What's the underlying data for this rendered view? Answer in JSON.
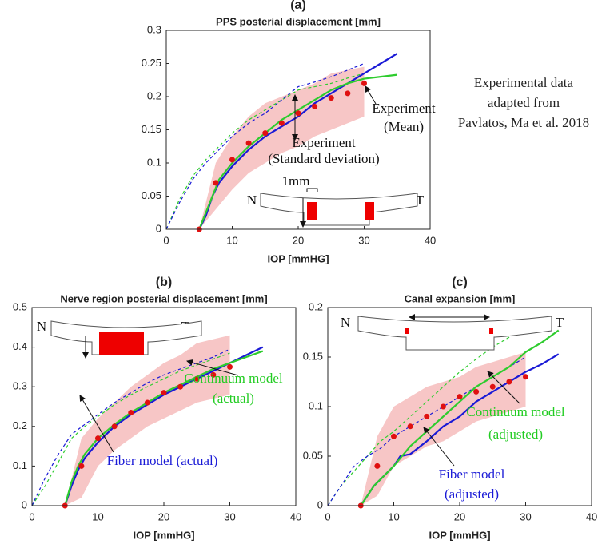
{
  "note": [
    "Experimental data",
    "adapted from",
    "Pavlatos, Ma et al. 2018"
  ],
  "chart_data": [
    {
      "type": "line",
      "panel_label": "(a)",
      "title": "PPS posterial displacement [mm]",
      "xlabel": "IOP [mmHG]",
      "xlim": [
        0,
        40
      ],
      "ylim": [
        0,
        0.3
      ],
      "xticks": [
        0,
        10,
        20,
        30,
        40
      ],
      "yticks": [
        0,
        0.05,
        0.1,
        0.15,
        0.2,
        0.25,
        0.3
      ],
      "band": {
        "color": "#f7c6c6",
        "x": [
          5,
          7.5,
          10,
          12.5,
          15,
          17.5,
          20,
          22.5,
          25,
          27.5,
          30
        ],
        "lower": [
          0,
          0.03,
          0.06,
          0.085,
          0.1,
          0.115,
          0.125,
          0.14,
          0.15,
          0.16,
          0.17
        ],
        "upper": [
          0,
          0.1,
          0.14,
          0.17,
          0.19,
          0.2,
          0.21,
          0.22,
          0.235,
          0.24,
          0.245
        ]
      },
      "series": [
        {
          "style": "dashed",
          "color": "#2ecc2e",
          "x": [
            0,
            2,
            4,
            6,
            8,
            10,
            12.5,
            15,
            17.5,
            20,
            22.5,
            25,
            27.5,
            30
          ],
          "values": [
            0,
            0.045,
            0.08,
            0.105,
            0.125,
            0.145,
            0.165,
            0.18,
            0.195,
            0.21,
            0.215,
            0.22,
            0.228,
            0.235
          ]
        },
        {
          "style": "dashed",
          "color": "#1a1ad6",
          "x": [
            0,
            2,
            4,
            6,
            8,
            10,
            12.5,
            15,
            17.5,
            20,
            22.5,
            25,
            27.5,
            30
          ],
          "values": [
            0,
            0.04,
            0.075,
            0.1,
            0.12,
            0.14,
            0.16,
            0.175,
            0.195,
            0.215,
            0.222,
            0.23,
            0.24,
            0.25
          ]
        },
        {
          "style": "solid",
          "color": "#1a1ad6",
          "x": [
            5,
            6,
            7,
            8,
            10,
            12.5,
            15,
            17.5,
            20,
            22.5,
            25,
            27.5,
            30,
            32.5,
            35
          ],
          "values": [
            0,
            0.02,
            0.05,
            0.07,
            0.095,
            0.12,
            0.14,
            0.155,
            0.17,
            0.19,
            0.205,
            0.22,
            0.235,
            0.25,
            0.265
          ]
        },
        {
          "style": "solid",
          "color": "#2ecc2e",
          "x": [
            5,
            6,
            7,
            8,
            10,
            12.5,
            15,
            17.5,
            20,
            22.5,
            25,
            27.5,
            30,
            32.5,
            35
          ],
          "values": [
            0,
            0.025,
            0.05,
            0.075,
            0.1,
            0.125,
            0.145,
            0.165,
            0.18,
            0.195,
            0.21,
            0.22,
            0.227,
            0.23,
            0.233
          ]
        },
        {
          "style": "dots",
          "color": "#e01010",
          "x": [
            5,
            7.5,
            10,
            12.5,
            15,
            17.5,
            20,
            22.5,
            25,
            27.5,
            30
          ],
          "values": [
            0,
            0.07,
            0.105,
            0.13,
            0.145,
            0.16,
            0.175,
            0.185,
            0.198,
            0.205,
            0.22
          ]
        }
      ],
      "annotations": [
        {
          "text": "Experiment",
          "color": "#111"
        },
        {
          "text": "(Mean)",
          "color": "#111"
        },
        {
          "text": "Experiment",
          "color": "#111"
        },
        {
          "text": "(Standard deviation)",
          "color": "#111"
        },
        {
          "text": "1mm",
          "color": "#111"
        },
        {
          "text": "N",
          "color": "#111"
        },
        {
          "text": "T",
          "color": "#111"
        }
      ]
    },
    {
      "type": "line",
      "panel_label": "(b)",
      "title": "Nerve region posterial displacement [mm]",
      "xlabel": "IOP [mmHG]",
      "xlim": [
        0,
        40
      ],
      "ylim": [
        0,
        0.5
      ],
      "xticks": [
        0,
        10,
        20,
        30,
        40
      ],
      "yticks": [
        0,
        0.1,
        0.2,
        0.3,
        0.4,
        0.5
      ],
      "band": {
        "color": "#f7c6c6",
        "x": [
          5,
          7.5,
          10,
          12.5,
          15,
          17.5,
          20,
          22.5,
          25,
          27.5,
          30
        ],
        "lower": [
          0,
          0.02,
          0.1,
          0.14,
          0.17,
          0.2,
          0.22,
          0.24,
          0.26,
          0.27,
          0.28
        ],
        "upper": [
          0,
          0.17,
          0.22,
          0.26,
          0.3,
          0.33,
          0.36,
          0.38,
          0.41,
          0.42,
          0.43
        ]
      },
      "series": [
        {
          "style": "dashed",
          "color": "#2ecc2e",
          "x": [
            0,
            2,
            4,
            6,
            8,
            10,
            12.5,
            15,
            17.5,
            20,
            22.5,
            25,
            27.5,
            30
          ],
          "values": [
            0,
            0.05,
            0.11,
            0.17,
            0.2,
            0.225,
            0.255,
            0.28,
            0.3,
            0.32,
            0.34,
            0.355,
            0.37,
            0.385
          ]
        },
        {
          "style": "dashed",
          "color": "#1a1ad6",
          "x": [
            0,
            2,
            4,
            6,
            8,
            10,
            12.5,
            15,
            17.5,
            20,
            22.5,
            25,
            27.5,
            30
          ],
          "values": [
            0,
            0.07,
            0.13,
            0.18,
            0.205,
            0.23,
            0.26,
            0.285,
            0.31,
            0.33,
            0.345,
            0.36,
            0.375,
            0.395
          ]
        },
        {
          "style": "solid",
          "color": "#1a1ad6",
          "x": [
            5,
            6,
            7,
            8,
            10,
            12.5,
            15,
            17.5,
            20,
            22.5,
            25,
            27.5,
            30,
            32.5,
            35
          ],
          "values": [
            0,
            0.05,
            0.09,
            0.12,
            0.16,
            0.2,
            0.23,
            0.255,
            0.28,
            0.3,
            0.32,
            0.34,
            0.36,
            0.38,
            0.4
          ]
        },
        {
          "style": "solid",
          "color": "#2ecc2e",
          "x": [
            5,
            6,
            7,
            8,
            10,
            12.5,
            15,
            17.5,
            20,
            22.5,
            25,
            27.5,
            30,
            32.5,
            35
          ],
          "values": [
            0,
            0.06,
            0.1,
            0.13,
            0.17,
            0.205,
            0.235,
            0.26,
            0.285,
            0.305,
            0.325,
            0.345,
            0.36,
            0.375,
            0.39
          ]
        },
        {
          "style": "dots",
          "color": "#e01010",
          "x": [
            5,
            7.5,
            10,
            12.5,
            15,
            17.5,
            20,
            22.5,
            25,
            27.5,
            30
          ],
          "values": [
            0,
            0.1,
            0.17,
            0.2,
            0.235,
            0.26,
            0.285,
            0.3,
            0.32,
            0.33,
            0.35
          ]
        }
      ],
      "annotations": [
        {
          "text": "Continuum model",
          "color": "#22cc22"
        },
        {
          "text": "(actual)",
          "color": "#22cc22"
        },
        {
          "text": "Fiber model (actual)",
          "color": "#1a1ad6"
        },
        {
          "text": "N",
          "color": "#111"
        },
        {
          "text": "T",
          "color": "#111"
        }
      ]
    },
    {
      "type": "line",
      "panel_label": "(c)",
      "title": "Canal expansion [mm]",
      "xlabel": "IOP [mmHG]",
      "xlim": [
        0,
        40
      ],
      "ylim": [
        0,
        0.2
      ],
      "xticks": [
        0,
        10,
        20,
        30,
        40
      ],
      "yticks": [
        0,
        0.05,
        0.1,
        0.15,
        0.2
      ],
      "band": {
        "color": "#f7c6c6",
        "x": [
          5,
          7.5,
          10,
          12.5,
          15,
          17.5,
          20,
          22.5,
          25,
          27.5,
          30
        ],
        "lower": [
          0,
          0.01,
          0.04,
          0.05,
          0.06,
          0.065,
          0.075,
          0.085,
          0.09,
          0.095,
          0.1
        ],
        "upper": [
          0,
          0.07,
          0.1,
          0.11,
          0.12,
          0.125,
          0.13,
          0.14,
          0.145,
          0.15,
          0.155
        ]
      },
      "series": [
        {
          "style": "dashed",
          "color": "#2ecc2e",
          "x": [
            0,
            2,
            4,
            6,
            8,
            10,
            12.5,
            15,
            17.5,
            20,
            22.5,
            25,
            27.5,
            30
          ],
          "values": [
            0,
            0.02,
            0.035,
            0.05,
            0.065,
            0.075,
            0.09,
            0.105,
            0.12,
            0.135,
            0.148,
            0.16,
            0.17,
            0.178
          ]
        },
        {
          "style": "dashed",
          "color": "#1a1ad6",
          "x": [
            0,
            2,
            4,
            6,
            8,
            10,
            12.5,
            15,
            17.5,
            20,
            22.5,
            25,
            27.5,
            30
          ],
          "values": [
            0,
            0.02,
            0.04,
            0.05,
            0.058,
            0.07,
            0.08,
            0.09,
            0.1,
            0.11,
            0.12,
            0.13,
            0.14,
            0.15
          ]
        },
        {
          "style": "solid",
          "color": "#1a1ad6",
          "x": [
            5,
            7,
            10,
            11,
            12.5,
            15,
            17.5,
            20,
            22.5,
            25,
            27.5,
            30,
            32.5,
            35
          ],
          "values": [
            0,
            0.02,
            0.04,
            0.05,
            0.052,
            0.065,
            0.08,
            0.09,
            0.105,
            0.115,
            0.125,
            0.135,
            0.143,
            0.153
          ]
        },
        {
          "style": "solid",
          "color": "#2ecc2e",
          "x": [
            5,
            7,
            10,
            12.5,
            15,
            17.5,
            20,
            22.5,
            25,
            27.5,
            30,
            32.5,
            35
          ],
          "values": [
            0,
            0.02,
            0.04,
            0.06,
            0.075,
            0.09,
            0.105,
            0.12,
            0.13,
            0.14,
            0.155,
            0.165,
            0.177
          ]
        },
        {
          "style": "dots",
          "color": "#e01010",
          "x": [
            5,
            7.5,
            10,
            12.5,
            15,
            17.5,
            20,
            22.5,
            25,
            27.5,
            30
          ],
          "values": [
            0,
            0.04,
            0.07,
            0.08,
            0.09,
            0.1,
            0.11,
            0.115,
            0.12,
            0.125,
            0.13
          ]
        }
      ],
      "annotations": [
        {
          "text": "Continuum model",
          "color": "#22cc22"
        },
        {
          "text": "(adjusted)",
          "color": "#22cc22"
        },
        {
          "text": "Fiber model",
          "color": "#1a1ad6"
        },
        {
          "text": "(adjusted)",
          "color": "#1a1ad6"
        },
        {
          "text": "N",
          "color": "#111"
        },
        {
          "text": "T",
          "color": "#111"
        }
      ]
    }
  ]
}
